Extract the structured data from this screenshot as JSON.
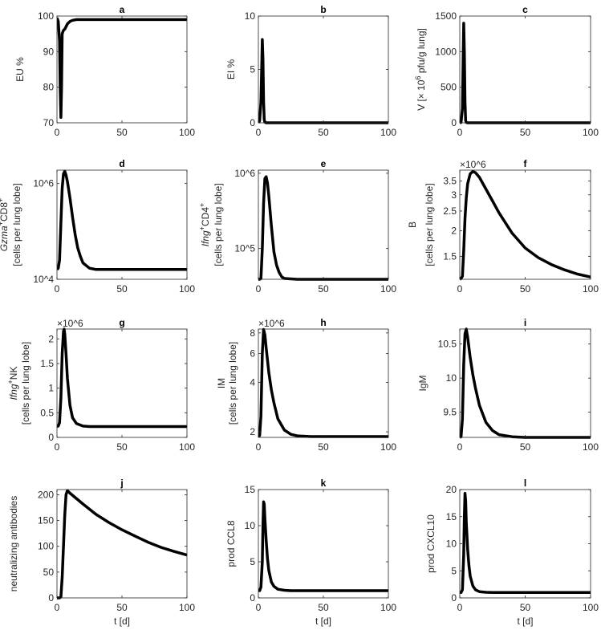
{
  "chart_data": [
    {
      "panel": "a",
      "type": "line",
      "title": "a",
      "ylabel": [
        [
          {
            "t": "EU %"
          }
        ]
      ],
      "xlabel": "",
      "yscale": "linear",
      "ylim": [
        70,
        100
      ],
      "yticks": [
        70,
        80,
        90,
        100
      ],
      "ytick_labels": [
        "70",
        "80",
        "90",
        "100"
      ],
      "xlim": [
        0,
        100
      ],
      "xticks": [
        0,
        50,
        100
      ],
      "xtick_labels": [
        "0",
        "50",
        "100"
      ],
      "x": [
        0,
        1,
        2,
        2.5,
        3,
        3.5,
        4,
        5,
        6,
        7,
        8,
        10,
        12,
        15,
        20,
        25,
        30,
        50,
        100
      ],
      "y": [
        99.5,
        98.5,
        93,
        80,
        71.5,
        80,
        95,
        96,
        96.3,
        97,
        97.8,
        98.5,
        98.8,
        99,
        99,
        99,
        99,
        99,
        99
      ]
    },
    {
      "panel": "b",
      "type": "line",
      "title": "b",
      "ylabel": [
        [
          {
            "t": "EI %"
          }
        ]
      ],
      "xlabel": "",
      "yscale": "linear",
      "ylim": [
        0,
        10
      ],
      "yticks": [
        0,
        5,
        10
      ],
      "ytick_labels": [
        "0",
        "5",
        "10"
      ],
      "xlim": [
        0,
        100
      ],
      "xticks": [
        0,
        50,
        100
      ],
      "xtick_labels": [
        "0",
        "50",
        "100"
      ],
      "x": [
        0,
        1,
        2,
        2.5,
        3,
        3.5,
        4,
        4.5,
        5,
        6,
        100
      ],
      "y": [
        0,
        0.2,
        2,
        5,
        7.8,
        6,
        2,
        0.3,
        0.05,
        0,
        0
      ]
    },
    {
      "panel": "c",
      "type": "line",
      "title": "c",
      "ylabel": [
        [
          {
            "t": "V [× 10"
          },
          {
            "t": "6",
            "sup": true
          },
          {
            "t": " pfu/g lung]"
          }
        ]
      ],
      "xlabel": "",
      "yscale": "linear",
      "ylim": [
        0,
        1500
      ],
      "yticks": [
        0,
        500,
        1000,
        1500
      ],
      "ytick_labels": [
        "0",
        "500",
        "1000",
        "1500"
      ],
      "xlim": [
        0,
        100
      ],
      "xticks": [
        0,
        50,
        100
      ],
      "xtick_labels": [
        "0",
        "50",
        "100"
      ],
      "x": [
        0,
        1,
        2,
        2.5,
        3,
        3.5,
        4,
        4.5,
        5,
        6,
        100
      ],
      "y": [
        0,
        5,
        200,
        800,
        1400,
        1000,
        300,
        30,
        5,
        0,
        0
      ]
    },
    {
      "panel": "d",
      "type": "line",
      "title": "d",
      "ylabel": [
        [
          {
            "t": "Gzma",
            "i": true
          },
          {
            "t": "+",
            "sup": true
          },
          {
            "t": "CD8"
          },
          {
            "t": "+",
            "sup": true
          }
        ],
        [
          {
            "t": "[cells per lung lobe]"
          }
        ]
      ],
      "xlabel": "",
      "yscale": "log",
      "ylim": [
        10000,
        1900000
      ],
      "yticks": [
        10000,
        1000000
      ],
      "ytick_labels": [
        "10^4",
        "10^6"
      ],
      "xlim": [
        0,
        100
      ],
      "xticks": [
        0,
        50,
        100
      ],
      "xtick_labels": [
        "0",
        "50",
        "100"
      ],
      "x": [
        0,
        1,
        2,
        3,
        4,
        5,
        6,
        7,
        8,
        10,
        12,
        14,
        16,
        18,
        20,
        25,
        30,
        40,
        100
      ],
      "y": [
        16000,
        17000,
        25000,
        150000,
        800000,
        1600000,
        1800000,
        1500000,
        1100000,
        500000,
        200000,
        85000,
        45000,
        30000,
        22000,
        17000,
        16000,
        16000,
        16000
      ]
    },
    {
      "panel": "e",
      "type": "line",
      "title": "e",
      "ylabel": [
        [
          {
            "t": "Ifng",
            "i": true
          },
          {
            "t": "+",
            "sup": true
          },
          {
            "t": "CD4"
          },
          {
            "t": "+",
            "sup": true
          }
        ],
        [
          {
            "t": "[cells per lung lobe]"
          }
        ]
      ],
      "xlabel": "",
      "yscale": "log",
      "ylim": [
        39000,
        1100000
      ],
      "yticks": [
        100000,
        1000000
      ],
      "ytick_labels": [
        "10^5",
        "10^6"
      ],
      "xlim": [
        0,
        100
      ],
      "xticks": [
        0,
        50,
        100
      ],
      "xtick_labels": [
        "0",
        "50",
        "100"
      ],
      "x": [
        0,
        1,
        2,
        3,
        4,
        5,
        6,
        7,
        8,
        10,
        12,
        14,
        16,
        18,
        20,
        25,
        30,
        40,
        100
      ],
      "y": [
        39000,
        39000,
        40000,
        100000,
        400000,
        850000,
        900000,
        750000,
        500000,
        200000,
        90000,
        60000,
        48000,
        42000,
        40000,
        39500,
        39000,
        39000,
        39000
      ]
    },
    {
      "panel": "f",
      "type": "line",
      "title": "f",
      "ylabel": [
        [
          {
            "t": "B"
          }
        ],
        [
          {
            "t": "[cells per lung lobe]"
          }
        ]
      ],
      "xlabel": "",
      "yscale": "log",
      "exponent": "×10^6",
      "ylim": [
        1.16,
        3.96
      ],
      "yticks": [
        1.5,
        2,
        2.5,
        3,
        3.5
      ],
      "ytick_labels": [
        "1.5",
        "2",
        "2.5",
        "3",
        "3.5"
      ],
      "xlim": [
        0,
        100
      ],
      "xticks": [
        0,
        50,
        100
      ],
      "xtick_labels": [
        "0",
        "50",
        "100"
      ],
      "x": [
        0,
        1,
        2,
        3,
        4,
        5,
        6,
        8,
        10,
        12,
        15,
        20,
        25,
        30,
        40,
        50,
        60,
        70,
        80,
        90,
        100
      ],
      "y": [
        1.16,
        1.17,
        1.2,
        1.6,
        2.3,
        2.9,
        3.4,
        3.8,
        3.9,
        3.85,
        3.65,
        3.2,
        2.8,
        2.45,
        1.95,
        1.65,
        1.48,
        1.37,
        1.29,
        1.23,
        1.19
      ]
    },
    {
      "panel": "g",
      "type": "line",
      "title": "g",
      "ylabel": [
        [
          {
            "t": "Ifng",
            "i": true
          },
          {
            "t": "+",
            "sup": true
          },
          {
            "t": "NK"
          }
        ],
        [
          {
            "t": "[cells per lung lobe]"
          }
        ]
      ],
      "xlabel": "",
      "yscale": "linear",
      "exponent": "×10^6",
      "ylim": [
        0,
        2.2
      ],
      "yticks": [
        0,
        0.5,
        1,
        1.5,
        2
      ],
      "ytick_labels": [
        "0",
        "0.5",
        "1",
        "1.5",
        "2"
      ],
      "xlim": [
        0,
        100
      ],
      "xticks": [
        0,
        50,
        100
      ],
      "xtick_labels": [
        "0",
        "50",
        "100"
      ],
      "x": [
        0,
        1,
        2,
        3,
        4,
        5,
        5.5,
        6,
        7,
        8,
        10,
        12,
        15,
        20,
        25,
        30,
        100
      ],
      "y": [
        0.22,
        0.23,
        0.3,
        0.8,
        1.7,
        2.15,
        2.2,
        2.1,
        1.7,
        1.2,
        0.65,
        0.4,
        0.28,
        0.23,
        0.22,
        0.22,
        0.22
      ]
    },
    {
      "panel": "h",
      "type": "line",
      "title": "h",
      "ylabel": [
        [
          {
            "t": "IM"
          }
        ],
        [
          {
            "t": "[cells per lung lobe]"
          }
        ]
      ],
      "xlabel": "",
      "yscale": "log",
      "exponent": "×10^6",
      "ylim": [
        1.85,
        8.45
      ],
      "yticks": [
        2,
        4,
        6,
        8
      ],
      "ytick_labels": [
        "2",
        "4",
        "6",
        "8"
      ],
      "xlim": [
        0,
        100
      ],
      "xticks": [
        0,
        50,
        100
      ],
      "xtick_labels": [
        "0",
        "50",
        "100"
      ],
      "x": [
        0,
        1,
        2,
        3,
        4,
        5,
        6,
        8,
        10,
        12,
        15,
        20,
        25,
        30,
        40,
        100
      ],
      "y": [
        1.87,
        1.9,
        2.5,
        6,
        8.4,
        7.8,
        6.5,
        4.6,
        3.6,
        3,
        2.4,
        2.05,
        1.93,
        1.89,
        1.87,
        1.87
      ]
    },
    {
      "panel": "i",
      "type": "line",
      "title": "i",
      "ylabel": [
        [
          {
            "t": "IgM"
          }
        ]
      ],
      "xlabel": "",
      "yscale": "linear",
      "ylim": [
        9.13,
        10.72
      ],
      "yticks": [
        9.5,
        10,
        10.5
      ],
      "ytick_labels": [
        "9.5",
        "10",
        "10.5"
      ],
      "xlim": [
        0,
        100
      ],
      "xticks": [
        0,
        50,
        100
      ],
      "xtick_labels": [
        "0",
        "50",
        "100"
      ],
      "x": [
        0,
        1,
        2,
        3,
        4,
        5,
        6,
        8,
        10,
        12,
        15,
        20,
        25,
        30,
        40,
        50,
        100
      ],
      "y": [
        9.13,
        9.14,
        9.4,
        10.2,
        10.65,
        10.72,
        10.6,
        10.3,
        10.05,
        9.85,
        9.6,
        9.35,
        9.23,
        9.17,
        9.14,
        9.13,
        9.13
      ]
    },
    {
      "panel": "j",
      "type": "line",
      "title": "j",
      "ylabel": [
        [
          {
            "t": "neutralizing antibodies"
          }
        ]
      ],
      "xlabel": "t [d]",
      "yscale": "linear",
      "ylim": [
        0,
        210
      ],
      "yticks": [
        0,
        50,
        100,
        150,
        200
      ],
      "ytick_labels": [
        "0",
        "50",
        "100",
        "150",
        "200"
      ],
      "xlim": [
        0,
        100
      ],
      "xticks": [
        0,
        50,
        100
      ],
      "xtick_labels": [
        "0",
        "50",
        "100"
      ],
      "x": [
        0,
        1,
        2,
        3,
        4,
        5,
        6,
        7,
        8,
        10,
        20,
        30,
        40,
        50,
        60,
        70,
        80,
        90,
        100
      ],
      "y": [
        0,
        0,
        0,
        2,
        40,
        100,
        160,
        200,
        208,
        203,
        182,
        162,
        146,
        132,
        120,
        108,
        98,
        90,
        83
      ]
    },
    {
      "panel": "k",
      "type": "line",
      "title": "k",
      "ylabel": [
        [
          {
            "t": "prod CCL8"
          }
        ]
      ],
      "xlabel": "t [d]",
      "yscale": "linear",
      "ylim": [
        0,
        15
      ],
      "yticks": [
        0,
        5,
        10,
        15
      ],
      "ytick_labels": [
        "0",
        "5",
        "10",
        "15"
      ],
      "xlim": [
        0,
        100
      ],
      "xticks": [
        0,
        50,
        100
      ],
      "xtick_labels": [
        "0",
        "50",
        "100"
      ],
      "x": [
        0,
        1,
        2,
        3,
        3.5,
        4,
        4.5,
        5,
        6,
        7,
        8,
        10,
        12,
        15,
        20,
        25,
        30,
        100
      ],
      "y": [
        1,
        1,
        1.5,
        5,
        10,
        13.3,
        13,
        11,
        8,
        5.5,
        3.8,
        2.2,
        1.6,
        1.2,
        1.05,
        1,
        1,
        1
      ]
    },
    {
      "panel": "l",
      "type": "line",
      "title": "l",
      "ylabel": [
        [
          {
            "t": "prod CXCL10"
          }
        ]
      ],
      "xlabel": "t [d]",
      "yscale": "linear",
      "ylim": [
        0,
        20
      ],
      "yticks": [
        0,
        5,
        10,
        15,
        20
      ],
      "ytick_labels": [
        "0",
        "5",
        "10",
        "15",
        "20"
      ],
      "xlim": [
        0,
        100
      ],
      "xticks": [
        0,
        50,
        100
      ],
      "xtick_labels": [
        "0",
        "50",
        "100"
      ],
      "x": [
        0,
        1,
        2,
        3,
        3.5,
        4,
        4.5,
        5,
        6,
        7,
        8,
        10,
        12,
        15,
        20,
        25,
        30,
        100
      ],
      "y": [
        1,
        1,
        1.5,
        8,
        15,
        19.3,
        18,
        14,
        9,
        6,
        4,
        2.2,
        1.5,
        1.15,
        1.03,
        1,
        1,
        1
      ]
    }
  ]
}
